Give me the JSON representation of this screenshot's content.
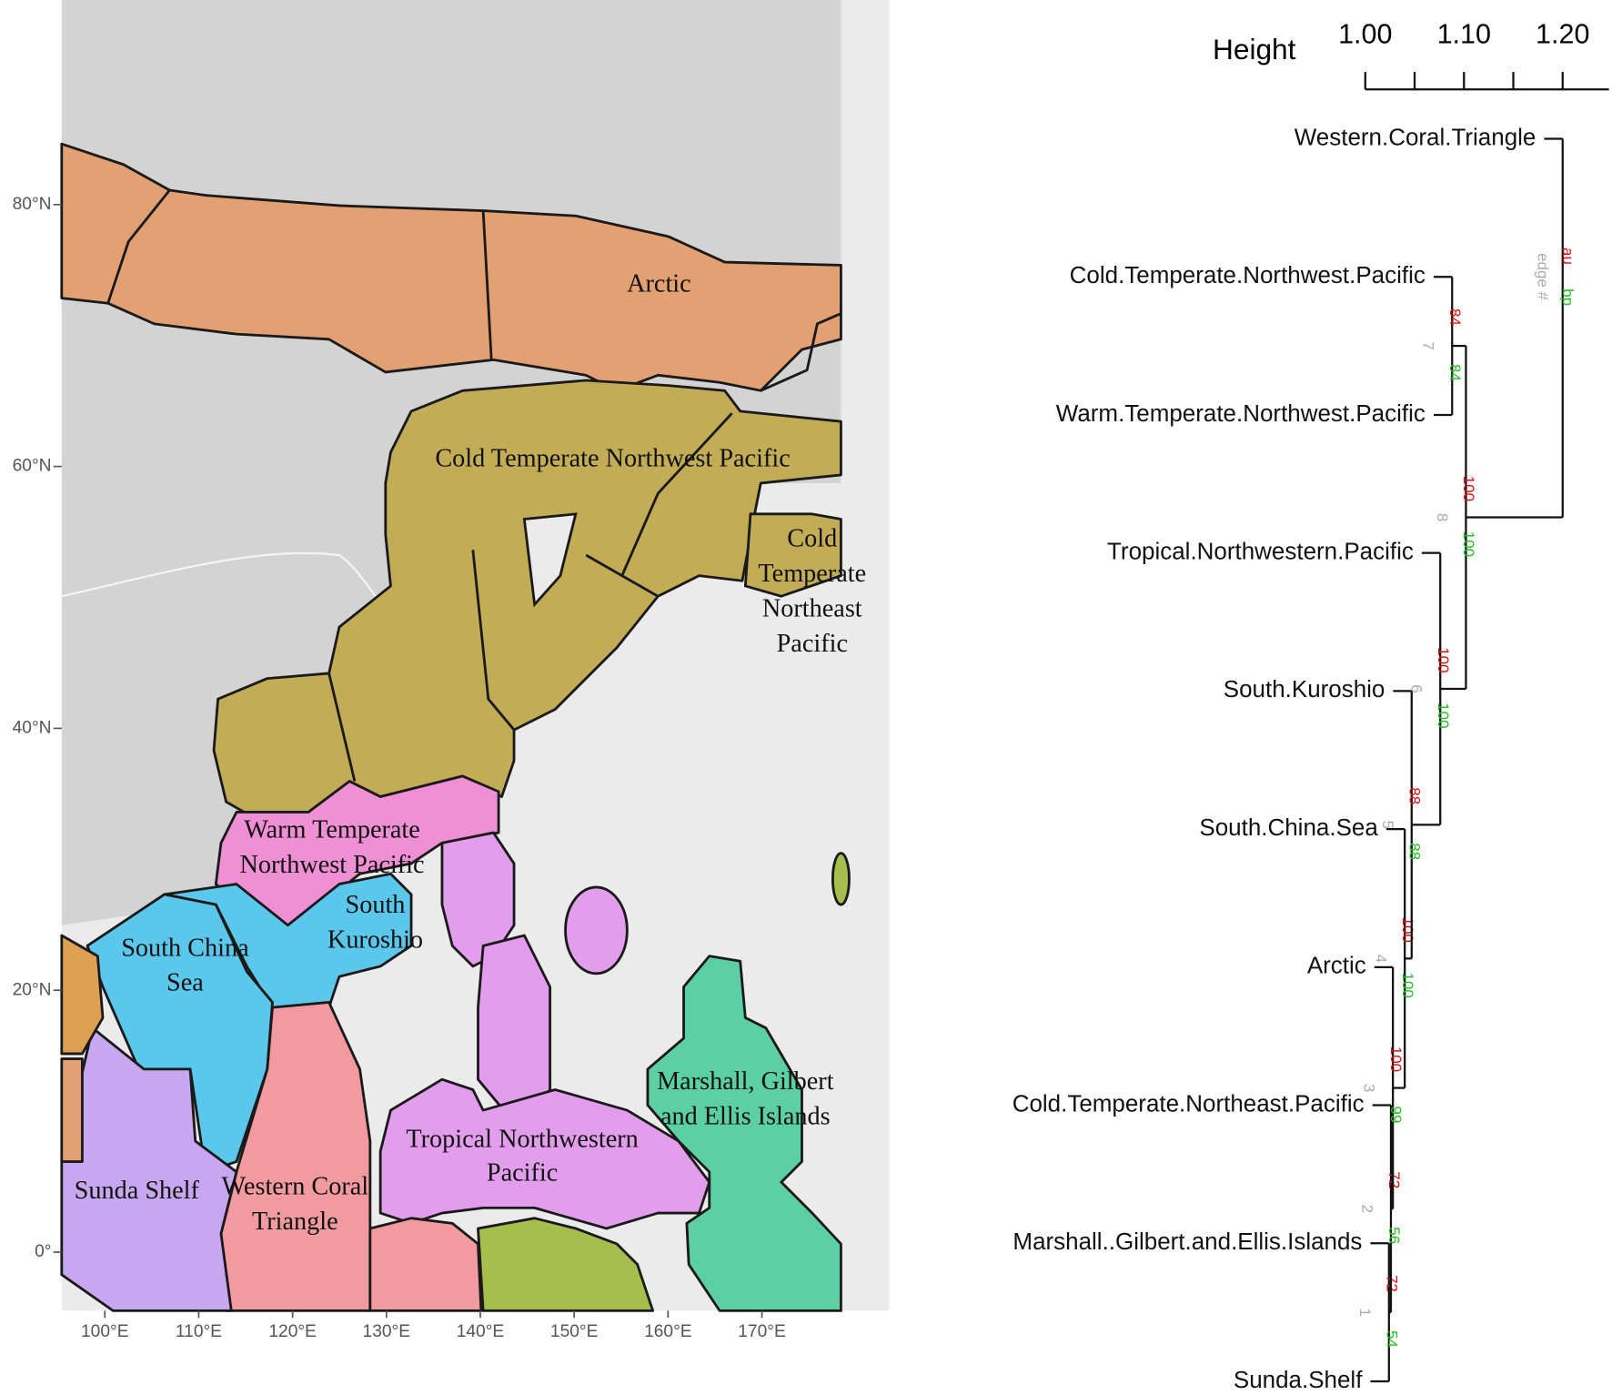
{
  "map": {
    "lat_labels": [
      "80°N",
      "60°N",
      "40°N",
      "20°N",
      "0°"
    ],
    "lon_labels": [
      "100°E",
      "110°E",
      "120°E",
      "130°E",
      "140°E",
      "150°E",
      "160°E",
      "170°E"
    ],
    "regions": [
      {
        "lines": [
          "Arctic"
        ]
      },
      {
        "lines": [
          "Cold Temperate Northwest Pacific"
        ]
      },
      {
        "lines": [
          "Cold",
          "Temperate",
          "Northeast",
          "Pacific"
        ]
      },
      {
        "lines": [
          "Warm Temperate",
          "Northwest Pacific"
        ]
      },
      {
        "lines": [
          "South",
          "Kuroshio"
        ]
      },
      {
        "lines": [
          "South China",
          "Sea"
        ]
      },
      {
        "lines": [
          "Marshall, Gilbert",
          "and Ellis Islands"
        ]
      },
      {
        "lines": [
          "Tropical Northwestern",
          "Pacific"
        ]
      },
      {
        "lines": [
          "Sunda Shelf"
        ]
      },
      {
        "lines": [
          "Western Coral",
          "Triangle"
        ]
      }
    ]
  },
  "dendrogram": {
    "axis_title": "Height",
    "xlim": [
      1.0,
      1.25
    ],
    "ticks": [
      {
        "value": 1.0,
        "label": "1.00"
      },
      1.05,
      {
        "value": 1.1,
        "label": "1.10"
      },
      1.15,
      {
        "value": 1.2,
        "label": "1.20"
      }
    ],
    "legend": {
      "au": "au",
      "bp": "bp",
      "edge": "edge #"
    },
    "leaves": [
      "Western.Coral.Triangle",
      "Cold.Temperate.Northwest.Pacific",
      "Warm.Temperate.Northwest.Pacific",
      "Tropical.Northwestern.Pacific",
      "South.Kuroshio",
      "South.China.Sea",
      "Arctic",
      "Cold.Temperate.Northeast.Pacific",
      "Marshall..Gilbert.and.Ellis.Islands",
      "Sunda.Shelf"
    ],
    "nodes": [
      {
        "edge": 1,
        "au": 72,
        "bp": 54,
        "height": 1.024
      },
      {
        "edge": 2,
        "au": 72,
        "bp": 56,
        "height": 1.026
      },
      {
        "edge": 3,
        "au": 100,
        "bp": 99,
        "height": 1.028
      },
      {
        "edge": 4,
        "au": 100,
        "bp": 100,
        "height": 1.04
      },
      {
        "edge": 5,
        "au": 88,
        "bp": 88,
        "height": 1.047
      },
      {
        "edge": 6,
        "au": 100,
        "bp": 100,
        "height": 1.076
      },
      {
        "edge": 7,
        "au": 84,
        "bp": 84,
        "height": 1.088
      },
      {
        "edge": 8,
        "au": 100,
        "bp": 100,
        "height": 1.102
      },
      {
        "height": 1.2
      }
    ]
  }
}
